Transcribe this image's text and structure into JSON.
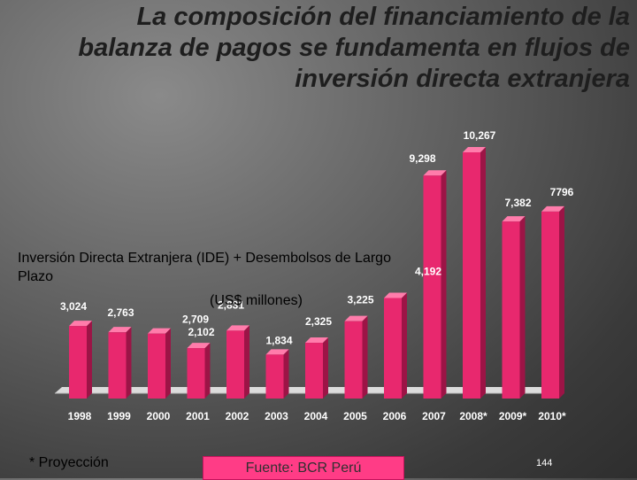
{
  "slide": {
    "title_lines": [
      "La composición del financiamiento de la",
      "balanza de pagos se fundamenta en flujos de",
      "inversión directa extranjera"
    ],
    "note": "* Proyección",
    "source": "Fuente: BCR Perú",
    "page_number": "144"
  },
  "chart_data": {
    "type": "bar",
    "subtitle": "Inversión Directa Extranjera (IDE) + Desembolsos de Largo Plazo",
    "units": "(US$ millones)",
    "categories": [
      "1998",
      "1999",
      "2000",
      "2001",
      "2002",
      "2003",
      "2004",
      "2005",
      "2006",
      "2007",
      "2008*",
      "2009*",
      "2010*"
    ],
    "values": [
      3024,
      2763,
      2709,
      2102,
      2831,
      1834,
      2325,
      3225,
      4192,
      9298,
      10267,
      7382,
      7796
    ],
    "data_labels": [
      "3,024",
      "2,763",
      "2,709",
      "2,102",
      "2,831",
      "1,834",
      "2,325",
      "3,225",
      "4,192",
      "9,298",
      "10,267",
      "7,382",
      "7796"
    ],
    "ylim": [
      0,
      10267
    ],
    "grid": false,
    "legend": "none",
    "colors": {
      "bar_front": "#e8286e",
      "bar_side": "#9c1446",
      "bar_top": "#ff7cab",
      "floor": "#d9d9d9"
    }
  }
}
